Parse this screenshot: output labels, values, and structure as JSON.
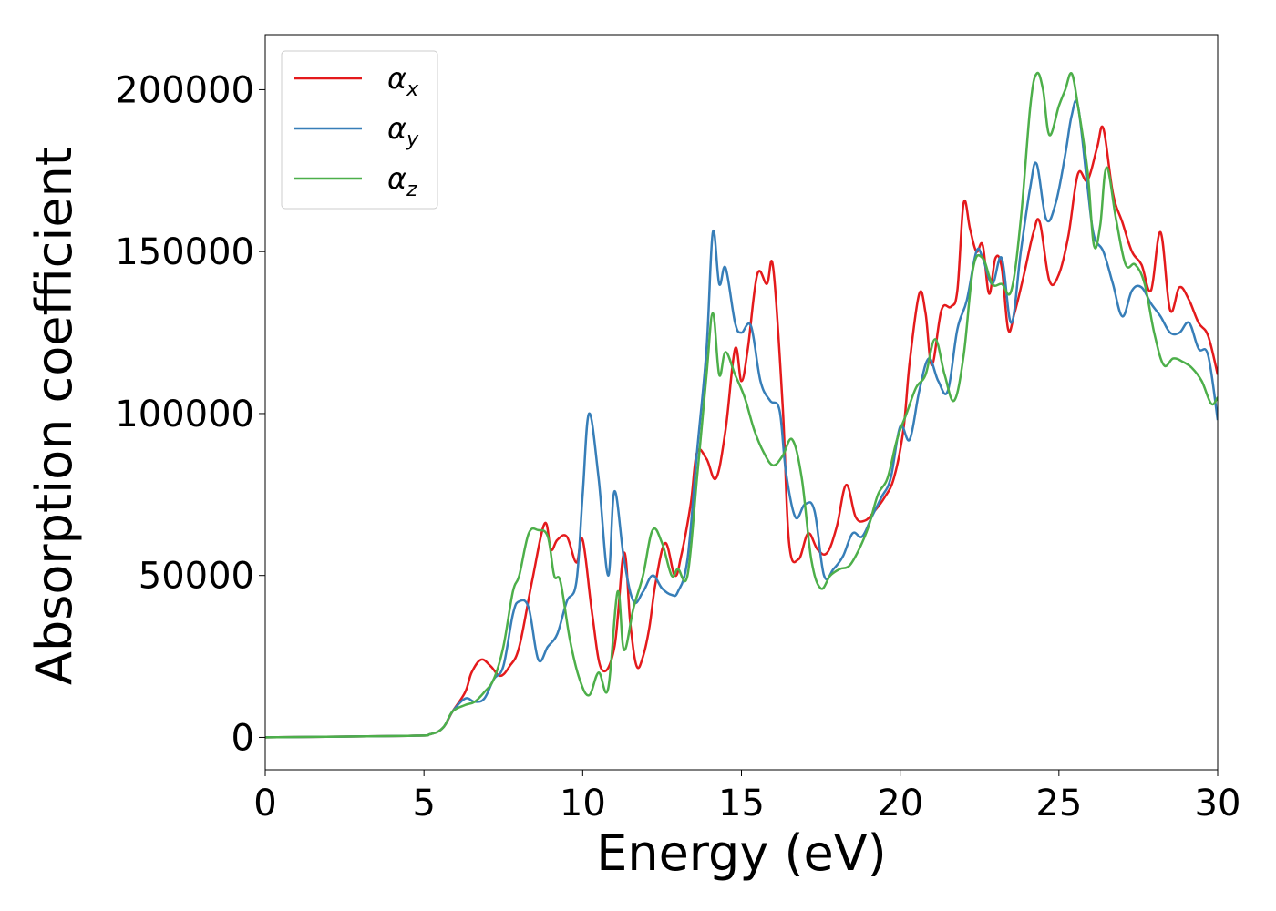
{
  "chart_data": {
    "type": "line",
    "xlabel": "Energy (eV)",
    "ylabel": "Absorption coefficient",
    "xlim": [
      0,
      30
    ],
    "ylim": [
      -10000,
      217000
    ],
    "xticks": [
      0,
      5,
      10,
      15,
      20,
      25,
      30
    ],
    "xtick_labels": [
      "0",
      "5",
      "10",
      "15",
      "20",
      "25",
      "30"
    ],
    "yticks": [
      0,
      50000,
      100000,
      150000,
      200000
    ],
    "ytick_labels": [
      "0",
      "50000",
      "100000",
      "150000",
      "200000"
    ],
    "grid": false,
    "legend_position": "top-left",
    "series": [
      {
        "name": "αx",
        "legend_base": "α",
        "legend_sub": "x",
        "color": "#e41a1c",
        "x": [
          0,
          4.5,
          5.2,
          5.6,
          5.9,
          6.3,
          6.5,
          6.8,
          7.1,
          7.4,
          7.7,
          8.0,
          8.4,
          8.8,
          9.0,
          9.2,
          9.5,
          9.8,
          10.0,
          10.3,
          10.6,
          11.0,
          11.3,
          11.5,
          11.7,
          11.9,
          12.1,
          12.3,
          12.6,
          12.9,
          13.1,
          13.4,
          13.6,
          13.9,
          14.2,
          14.5,
          14.8,
          15.0,
          15.2,
          15.5,
          15.8,
          16.0,
          16.3,
          16.5,
          16.8,
          17.1,
          17.4,
          17.7,
          18.0,
          18.3,
          18.6,
          18.9,
          19.2,
          19.5,
          19.8,
          20.1,
          20.3,
          20.6,
          20.8,
          21.0,
          21.3,
          21.6,
          21.8,
          22.0,
          22.2,
          22.4,
          22.6,
          22.8,
          23.0,
          23.2,
          23.4,
          23.6,
          23.9,
          24.2,
          24.4,
          24.7,
          25.0,
          25.3,
          25.6,
          25.9,
          26.2,
          26.4,
          26.7,
          27.0,
          27.3,
          27.6,
          27.9,
          28.2,
          28.5,
          28.8,
          29.1,
          29.4,
          29.7,
          30.0
        ],
        "y": [
          0,
          500,
          1000,
          3000,
          8000,
          14000,
          20000,
          24000,
          22000,
          19000,
          22000,
          28000,
          48000,
          66000,
          58000,
          61000,
          62000,
          54000,
          61000,
          38000,
          21000,
          28000,
          57000,
          35000,
          22000,
          25000,
          34000,
          48000,
          60000,
          50000,
          56000,
          72000,
          88000,
          86000,
          80000,
          95000,
          120000,
          110000,
          120000,
          143000,
          140000,
          145000,
          102000,
          60000,
          55000,
          63000,
          58000,
          57000,
          65000,
          78000,
          68000,
          67000,
          70000,
          74000,
          80000,
          95000,
          116000,
          137000,
          131000,
          115000,
          132000,
          133000,
          138000,
          165000,
          157000,
          150000,
          152000,
          137000,
          148000,
          145000,
          126000,
          131000,
          143000,
          156000,
          159000,
          141000,
          143000,
          155000,
          174000,
          172000,
          182000,
          188000,
          168000,
          159000,
          150000,
          146000,
          138000,
          156000,
          132000,
          139000,
          135000,
          128000,
          124000,
          112000
        ]
      },
      {
        "name": "αy",
        "legend_base": "α",
        "legend_sub": "y",
        "color": "#377eb8",
        "x": [
          0,
          4.5,
          5.2,
          5.6,
          5.9,
          6.3,
          6.6,
          6.9,
          7.2,
          7.5,
          7.8,
          8.0,
          8.3,
          8.6,
          8.9,
          9.2,
          9.5,
          9.8,
          10.0,
          10.2,
          10.5,
          10.8,
          11.0,
          11.3,
          11.6,
          11.9,
          12.2,
          12.5,
          12.8,
          13.0,
          13.3,
          13.6,
          13.9,
          14.1,
          14.3,
          14.5,
          14.8,
          15.0,
          15.3,
          15.6,
          15.9,
          16.2,
          16.4,
          16.7,
          17.0,
          17.3,
          17.6,
          17.9,
          18.2,
          18.5,
          18.8,
          19.1,
          19.4,
          19.7,
          20.0,
          20.3,
          20.6,
          20.9,
          21.2,
          21.5,
          21.8,
          22.1,
          22.4,
          22.6,
          22.9,
          23.2,
          23.5,
          23.8,
          24.1,
          24.3,
          24.6,
          24.9,
          25.2,
          25.4,
          25.6,
          25.9,
          26.1,
          26.4,
          26.7,
          27.0,
          27.3,
          27.6,
          27.9,
          28.2,
          28.5,
          28.8,
          29.1,
          29.4,
          29.7,
          30.0
        ],
        "y": [
          0,
          500,
          1000,
          3000,
          8000,
          12000,
          11000,
          12000,
          18000,
          22000,
          38000,
          42000,
          40000,
          24000,
          28000,
          32000,
          42000,
          48000,
          75000,
          100000,
          80000,
          50000,
          76000,
          55000,
          42000,
          45000,
          50000,
          46000,
          44000,
          45000,
          55000,
          88000,
          120000,
          156000,
          140000,
          145000,
          128000,
          125000,
          127000,
          110000,
          104000,
          101000,
          82000,
          68000,
          72000,
          70000,
          50000,
          52000,
          56000,
          63000,
          62000,
          68000,
          74000,
          80000,
          96000,
          92000,
          107000,
          117000,
          110000,
          107000,
          126000,
          135000,
          150000,
          148000,
          140000,
          148000,
          128000,
          150000,
          170000,
          177000,
          160000,
          165000,
          180000,
          192000,
          195000,
          170000,
          155000,
          150000,
          140000,
          130000,
          138000,
          139000,
          134000,
          130000,
          125000,
          125000,
          128000,
          120000,
          118000,
          98000
        ]
      },
      {
        "name": "αz",
        "legend_base": "α",
        "legend_sub": "z",
        "color": "#4daf4a",
        "x": [
          0,
          4.5,
          5.2,
          5.6,
          5.9,
          6.3,
          6.6,
          6.9,
          7.2,
          7.5,
          7.8,
          8.0,
          8.3,
          8.6,
          8.9,
          9.1,
          9.3,
          9.6,
          9.9,
          10.2,
          10.5,
          10.8,
          11.1,
          11.3,
          11.6,
          11.9,
          12.2,
          12.5,
          12.8,
          13.0,
          13.3,
          13.6,
          13.9,
          14.1,
          14.3,
          14.5,
          14.8,
          15.1,
          15.4,
          15.7,
          16.0,
          16.3,
          16.6,
          16.9,
          17.2,
          17.5,
          17.8,
          18.1,
          18.4,
          18.7,
          19.0,
          19.3,
          19.6,
          19.9,
          20.2,
          20.5,
          20.8,
          21.1,
          21.4,
          21.7,
          22.0,
          22.3,
          22.6,
          22.9,
          23.2,
          23.5,
          23.8,
          24.1,
          24.3,
          24.5,
          24.7,
          25.0,
          25.2,
          25.4,
          25.6,
          25.9,
          26.1,
          26.3,
          26.5,
          26.8,
          27.1,
          27.4,
          27.7,
          28.0,
          28.3,
          28.6,
          28.9,
          29.2,
          29.5,
          29.8,
          30.0
        ],
        "y": [
          0,
          500,
          1000,
          3000,
          8000,
          10000,
          11000,
          14000,
          18000,
          28000,
          45000,
          50000,
          63000,
          64000,
          62000,
          50000,
          48000,
          30000,
          18000,
          13000,
          20000,
          15000,
          45000,
          27000,
          40000,
          50000,
          64000,
          60000,
          50000,
          52000,
          50000,
          80000,
          112000,
          131000,
          112000,
          119000,
          112000,
          105000,
          95000,
          88000,
          84000,
          87000,
          92000,
          80000,
          55000,
          46000,
          50000,
          52000,
          53000,
          58000,
          65000,
          75000,
          80000,
          92000,
          100000,
          108000,
          112000,
          123000,
          112000,
          104000,
          118000,
          145000,
          148000,
          140000,
          140000,
          138000,
          160000,
          195000,
          205000,
          200000,
          186000,
          195000,
          200000,
          205000,
          195000,
          175000,
          152000,
          158000,
          176000,
          160000,
          146000,
          146000,
          140000,
          125000,
          115000,
          117000,
          116000,
          114000,
          110000,
          103000,
          105000
        ]
      }
    ]
  }
}
